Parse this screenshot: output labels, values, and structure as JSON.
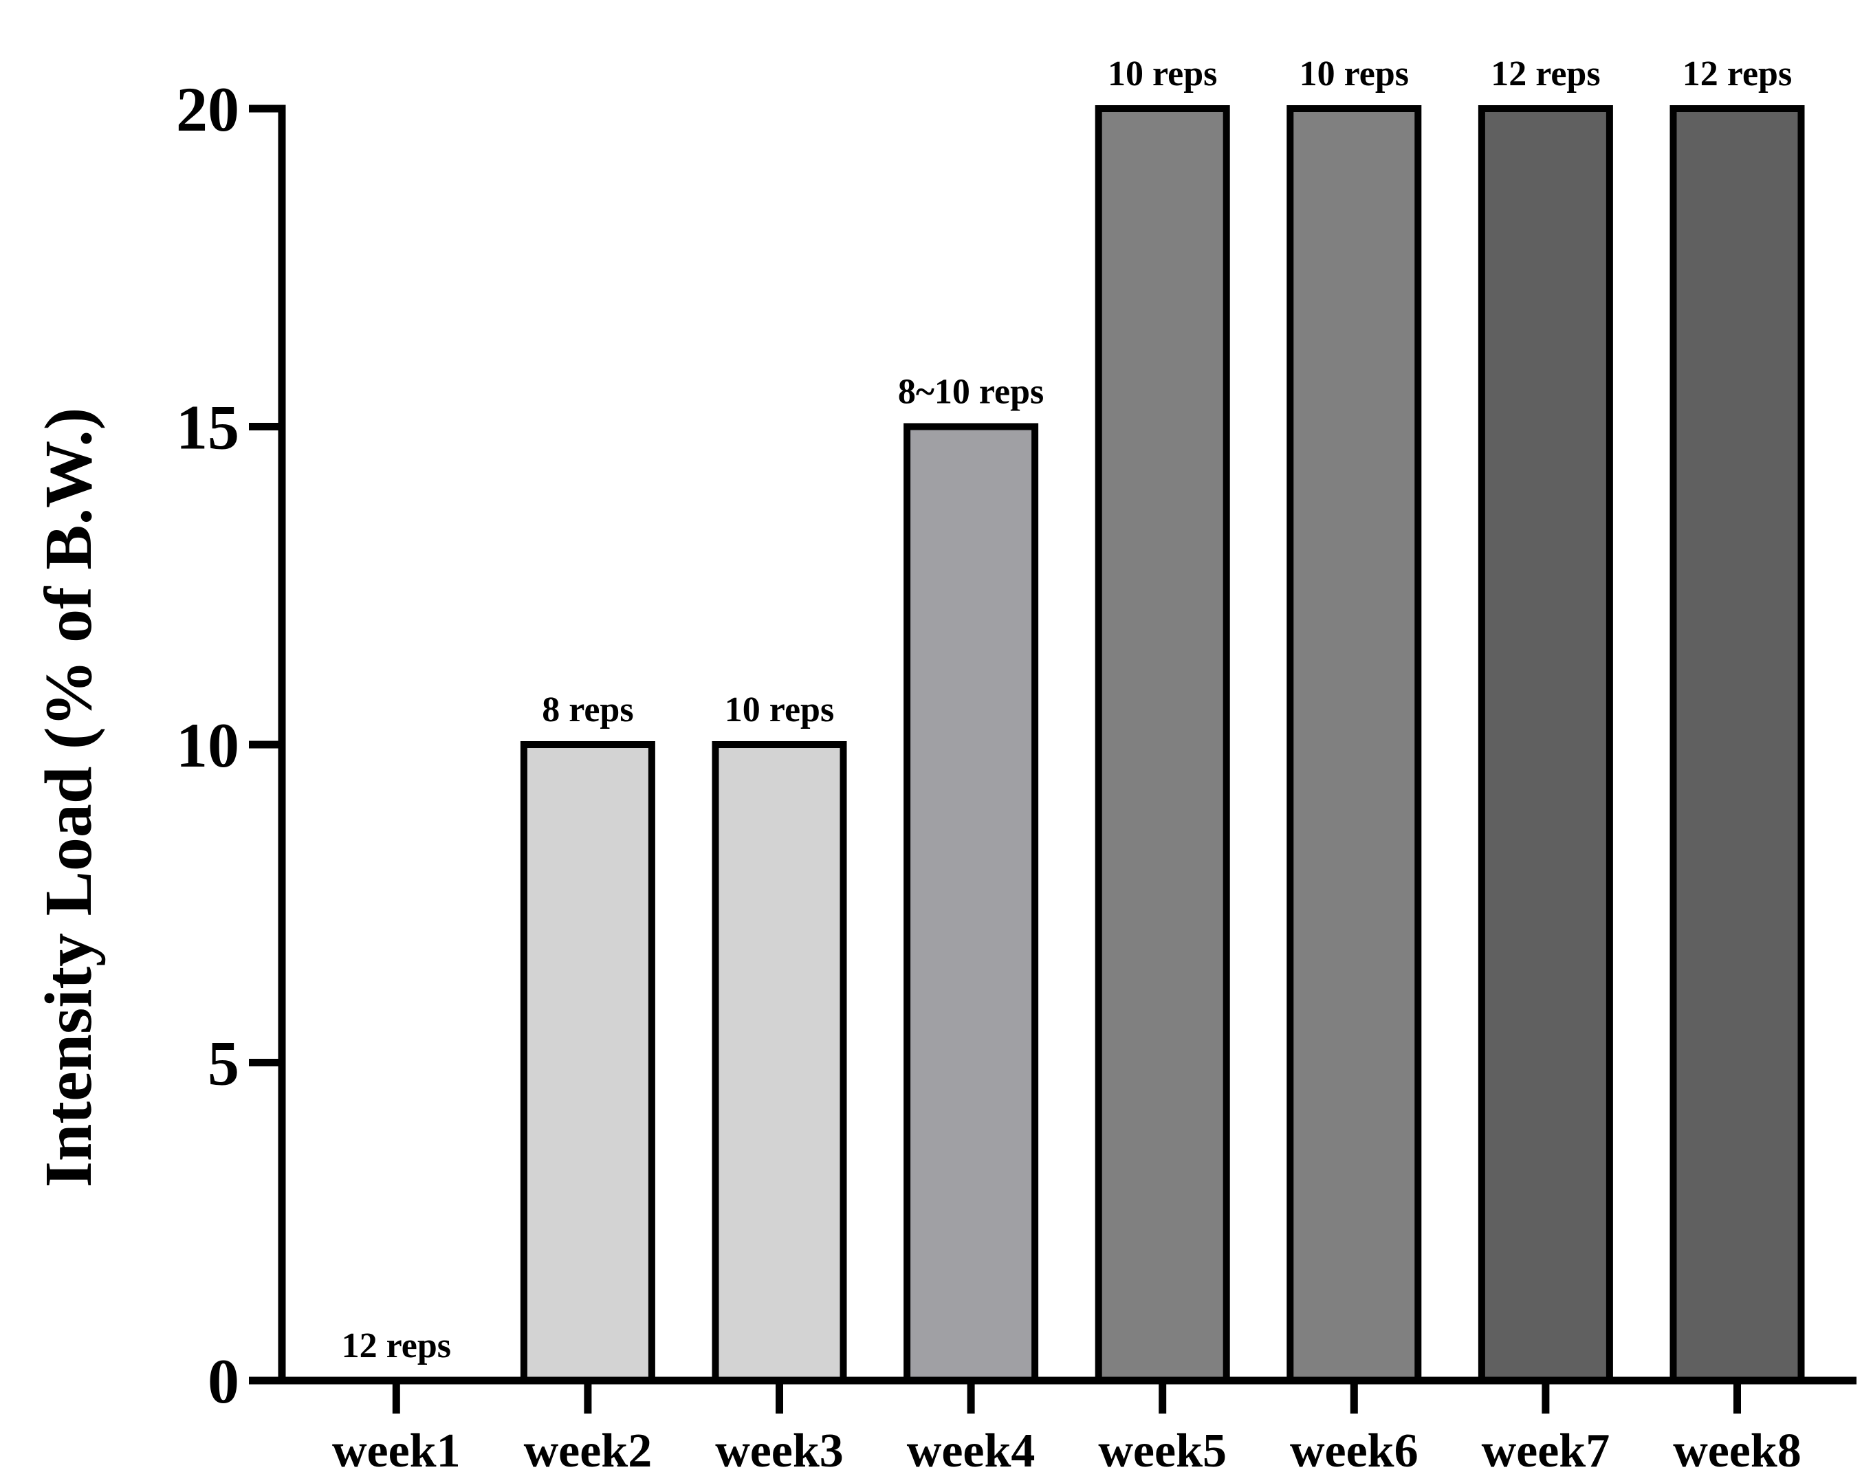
{
  "chart_data": {
    "type": "bar",
    "title": "",
    "xlabel": "",
    "ylabel": "Intensity Load (% of B.W.)",
    "ylim": [
      0,
      20
    ],
    "yticks": [
      0,
      5,
      10,
      15,
      20
    ],
    "categories": [
      "week1",
      "week2",
      "week3",
      "week4",
      "week5",
      "week6",
      "week7",
      "week8"
    ],
    "values": [
      0,
      10,
      10,
      15,
      20,
      20,
      20,
      20
    ],
    "data_labels": [
      "12 reps",
      "8 reps",
      "10 reps",
      "8~10 reps",
      "10 reps",
      "10 reps",
      "12 reps",
      "12 reps"
    ],
    "bar_colors": [
      "#d3d3d3",
      "#d3d3d3",
      "#d3d3d3",
      "#a0a0a4",
      "#808080",
      "#808080",
      "#606060",
      "#606060"
    ],
    "grid": false,
    "legend": "none"
  }
}
